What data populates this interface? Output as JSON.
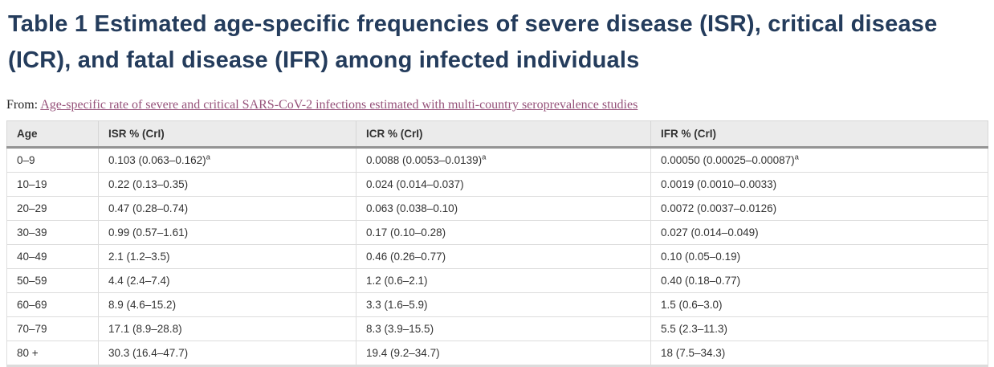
{
  "page": {
    "title": "Table 1 Estimated age-specific frequencies of severe disease (ISR), critical disease (ICR), and fatal disease (IFR) among infected individuals",
    "from_label": "From:",
    "source_link": "Age-specific rate of severe and critical SARS-CoV-2 infections estimated with multi-country seroprevalence studies"
  },
  "colors": {
    "title_text": "#243c5c",
    "link_text": "#96527a",
    "header_background": "#ebebeb",
    "header_rule": "#949494",
    "cell_border": "#dddddd",
    "body_text": "#333333"
  },
  "table": {
    "columns": [
      {
        "label": "Age"
      },
      {
        "label": "ISR % (CrI)"
      },
      {
        "label": "ICR % (CrI)"
      },
      {
        "label": "IFR % (CrI)"
      }
    ],
    "rows": [
      {
        "age": "0–9",
        "isr": "0.103 (0.063–0.162)",
        "isr_sup": "a",
        "icr": "0.0088 (0.0053–0.0139)",
        "icr_sup": "a",
        "ifr": "0.00050 (0.00025–0.00087)",
        "ifr_sup": "a"
      },
      {
        "age": "10–19",
        "isr": "0.22 (0.13–0.35)",
        "icr": "0.024 (0.014–0.037)",
        "ifr": "0.0019 (0.0010–0.0033)"
      },
      {
        "age": "20–29",
        "isr": "0.47 (0.28–0.74)",
        "icr": "0.063 (0.038–0.10)",
        "ifr": "0.0072 (0.0037–0.0126)"
      },
      {
        "age": "30–39",
        "isr": "0.99 (0.57–1.61)",
        "icr": "0.17 (0.10–0.28)",
        "ifr": "0.027 (0.014–0.049)"
      },
      {
        "age": "40–49",
        "isr": "2.1 (1.2–3.5)",
        "icr": "0.46 (0.26–0.77)",
        "ifr": "0.10 (0.05–0.19)"
      },
      {
        "age": "50–59",
        "isr": "4.4 (2.4–7.4)",
        "icr": "1.2 (0.6–2.1)",
        "ifr": "0.40 (0.18–0.77)"
      },
      {
        "age": "60–69",
        "isr": "8.9 (4.6–15.2)",
        "icr": "3.3 (1.6–5.9)",
        "ifr": "1.5 (0.6–3.0)"
      },
      {
        "age": "70–79",
        "isr": "17.1 (8.9–28.8)",
        "icr": "8.3 (3.9–15.5)",
        "ifr": "5.5 (2.3–11.3)"
      },
      {
        "age": "80 +",
        "isr": "30.3 (16.4–47.7)",
        "icr": "19.4 (9.2–34.7)",
        "ifr": "18 (7.5–34.3)"
      }
    ]
  }
}
